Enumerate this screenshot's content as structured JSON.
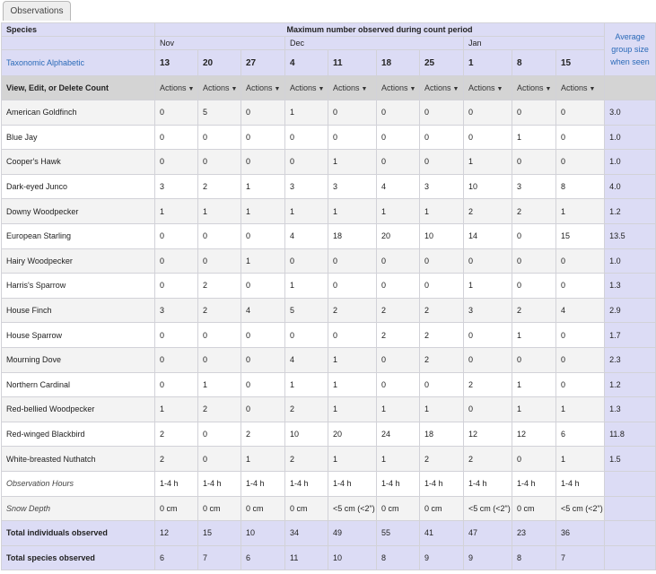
{
  "tab": {
    "label": "Observations"
  },
  "header": {
    "species_label": "Species",
    "max_label": "Maximum number observed during count period",
    "taxonomic_label": "Taxonomic Alphabetic",
    "avg_line1": "Average",
    "avg_line2": "group size",
    "avg_line3": "when seen",
    "view_edit_label": "View, Edit, or Delete Count",
    "actions_label": "Actions"
  },
  "months": [
    {
      "label": "Nov",
      "span": 3
    },
    {
      "label": "Dec",
      "span": 4
    },
    {
      "label": "Jan",
      "span": 3
    }
  ],
  "days": [
    "13",
    "20",
    "27",
    "4",
    "11",
    "18",
    "25",
    "1",
    "8",
    "15"
  ],
  "species": [
    {
      "name": "American Goldfinch",
      "counts": [
        "0",
        "5",
        "0",
        "1",
        "0",
        "0",
        "0",
        "0",
        "0",
        "0"
      ],
      "avg": "3.0"
    },
    {
      "name": "Blue Jay",
      "counts": [
        "0",
        "0",
        "0",
        "0",
        "0",
        "0",
        "0",
        "0",
        "1",
        "0"
      ],
      "avg": "1.0"
    },
    {
      "name": "Cooper's Hawk",
      "counts": [
        "0",
        "0",
        "0",
        "0",
        "1",
        "0",
        "0",
        "1",
        "0",
        "0"
      ],
      "avg": "1.0"
    },
    {
      "name": "Dark-eyed Junco",
      "counts": [
        "3",
        "2",
        "1",
        "3",
        "3",
        "4",
        "3",
        "10",
        "3",
        "8"
      ],
      "avg": "4.0"
    },
    {
      "name": "Downy Woodpecker",
      "counts": [
        "1",
        "1",
        "1",
        "1",
        "1",
        "1",
        "1",
        "2",
        "2",
        "1"
      ],
      "avg": "1.2"
    },
    {
      "name": "European Starling",
      "counts": [
        "0",
        "0",
        "0",
        "4",
        "18",
        "20",
        "10",
        "14",
        "0",
        "15"
      ],
      "avg": "13.5"
    },
    {
      "name": "Hairy Woodpecker",
      "counts": [
        "0",
        "0",
        "1",
        "0",
        "0",
        "0",
        "0",
        "0",
        "0",
        "0"
      ],
      "avg": "1.0"
    },
    {
      "name": "Harris's Sparrow",
      "counts": [
        "0",
        "2",
        "0",
        "1",
        "0",
        "0",
        "0",
        "1",
        "0",
        "0"
      ],
      "avg": "1.3"
    },
    {
      "name": "House Finch",
      "counts": [
        "3",
        "2",
        "4",
        "5",
        "2",
        "2",
        "2",
        "3",
        "2",
        "4"
      ],
      "avg": "2.9"
    },
    {
      "name": "House Sparrow",
      "counts": [
        "0",
        "0",
        "0",
        "0",
        "0",
        "2",
        "2",
        "0",
        "1",
        "0"
      ],
      "avg": "1.7"
    },
    {
      "name": "Mourning Dove",
      "counts": [
        "0",
        "0",
        "0",
        "4",
        "1",
        "0",
        "2",
        "0",
        "0",
        "0"
      ],
      "avg": "2.3"
    },
    {
      "name": "Northern Cardinal",
      "counts": [
        "0",
        "1",
        "0",
        "1",
        "1",
        "0",
        "0",
        "2",
        "1",
        "0"
      ],
      "avg": "1.2"
    },
    {
      "name": "Red-bellied Woodpecker",
      "counts": [
        "1",
        "2",
        "0",
        "2",
        "1",
        "1",
        "1",
        "0",
        "1",
        "1"
      ],
      "avg": "1.3"
    },
    {
      "name": "Red-winged Blackbird",
      "counts": [
        "2",
        "0",
        "2",
        "10",
        "20",
        "24",
        "18",
        "12",
        "12",
        "6"
      ],
      "avg": "11.8"
    },
    {
      "name": "White-breasted Nuthatch",
      "counts": [
        "2",
        "0",
        "1",
        "2",
        "1",
        "1",
        "2",
        "2",
        "0",
        "1"
      ],
      "avg": "1.5"
    }
  ],
  "meta_rows": [
    {
      "name": "Observation Hours",
      "values": [
        "1-4 h",
        "1-4 h",
        "1-4 h",
        "1-4 h",
        "1-4 h",
        "1-4 h",
        "1-4 h",
        "1-4 h",
        "1-4 h",
        "1-4 h"
      ]
    },
    {
      "name": "Snow Depth",
      "values": [
        "0 cm",
        "0 cm",
        "0 cm",
        "0 cm",
        "<5 cm (<2\")",
        "0 cm",
        "0 cm",
        "<5 cm (<2\")",
        "0 cm",
        "<5 cm (<2\")"
      ]
    }
  ],
  "totals": [
    {
      "name": "Total individuals observed",
      "values": [
        "12",
        "15",
        "10",
        "34",
        "49",
        "55",
        "41",
        "47",
        "23",
        "36"
      ]
    },
    {
      "name": "Total species observed",
      "values": [
        "6",
        "7",
        "6",
        "11",
        "10",
        "8",
        "9",
        "9",
        "8",
        "7"
      ]
    }
  ]
}
